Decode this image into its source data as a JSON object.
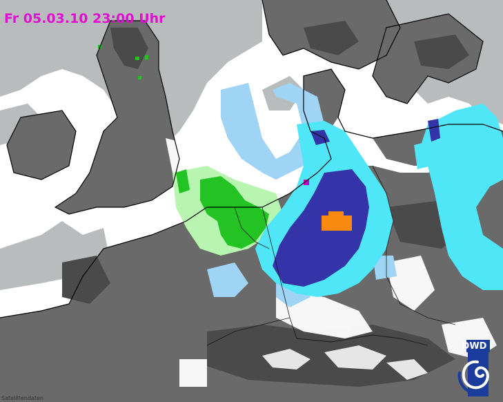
{
  "timestamp_label": "Fr 05.03.10 23:00 Uhr",
  "logo_text": "DWD",
  "credit_text": "Satellitendaten",
  "colors": {
    "title": "#e010d0",
    "sea_white": "#ffffff",
    "land_dark": "#555555",
    "land_mid": "#7a7a7a",
    "cloud_gray": "#b8bcbc",
    "precip_light_blue": "#9fd4f5",
    "precip_cyan": "#4fe6f7",
    "precip_dark_blue": "#3434a8",
    "precip_light_green": "#b8f5b0",
    "precip_green": "#22c322",
    "precip_orange": "#f88a10",
    "precip_magenta": "#c400c4",
    "logo_blue": "#1a3c9c"
  },
  "legend_icons": [
    "dwd-logo-icon"
  ]
}
